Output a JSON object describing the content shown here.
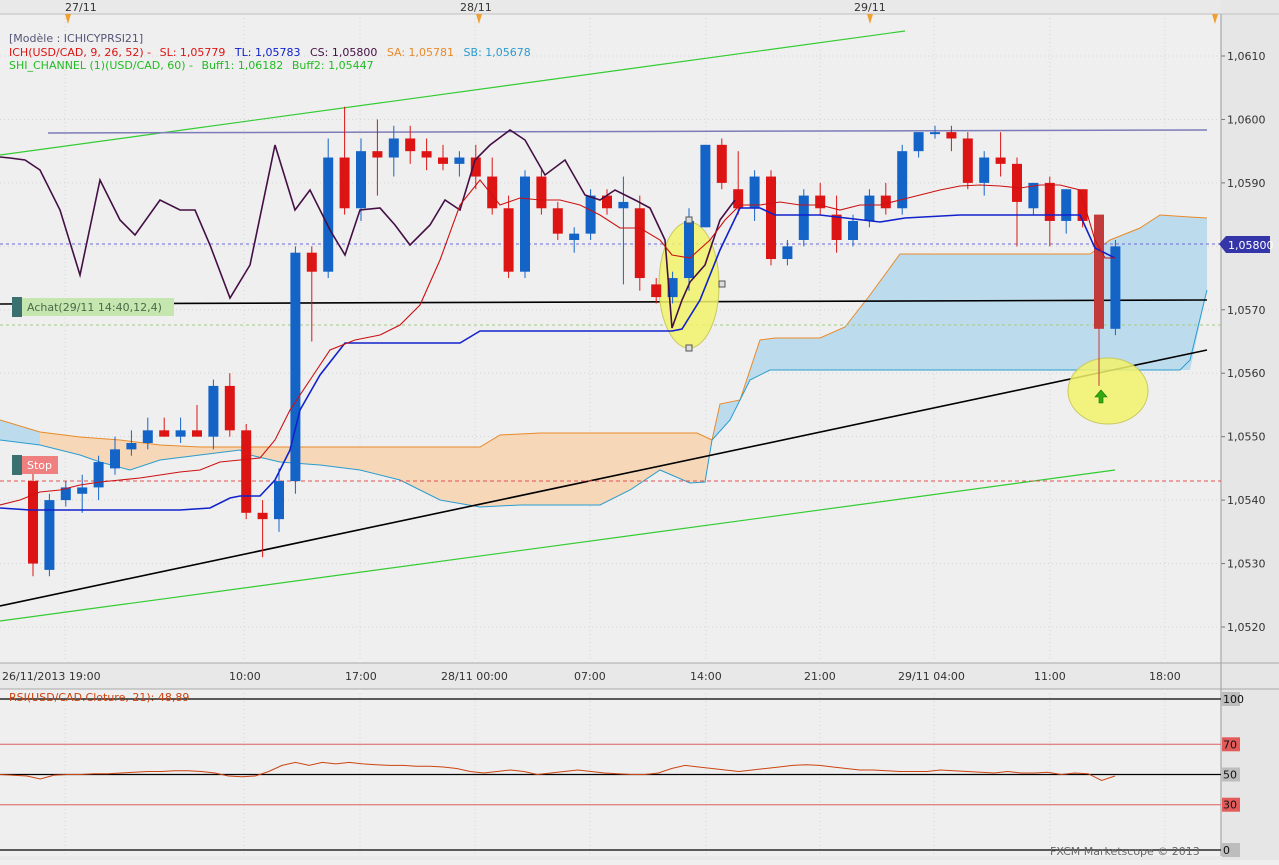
{
  "date_markers": [
    "27/11",
    "28/11",
    "29/11"
  ],
  "main_chart": {
    "template": "[Modèle : ICHICYPRSI21]",
    "ichimoku": {
      "prefix": "ICH(USD/CAD, 9, 26, 52) -",
      "sl": "SL: 1,05779",
      "tl": "TL: 1,05783",
      "cs": "CS: 1,05800",
      "sa": "SA: 1,05781",
      "sb": "SB: 1,05678"
    },
    "shi_channel": {
      "prefix": "SHI_CHANNEL (1)(USD/CAD, 60) -",
      "buff1": "Buff1: 1,06182",
      "buff2": "Buff2: 1,05447"
    },
    "buy_label": "Achat(29/11 14:40,12,4)",
    "stop_label": "Stop",
    "last_price": "1,05800"
  },
  "rsi_panel": {
    "label": "RSI(USD/CAD.Cloture, 21): 48,89",
    "y_ticks": [
      "100",
      "70",
      "50",
      "30",
      "0"
    ]
  },
  "copyright": "FXCM Marketscope © 2013",
  "colors": {
    "bull": "#1464c8",
    "bear": "#dd1414",
    "cloud_bull": "#bcdcee",
    "cloud_bear": "#f6d7b8",
    "tenkan": "#cc1111",
    "kijun": "#1122cc",
    "chikou": "#440f44",
    "channel": "#33cc33",
    "rsi": "#cc4411",
    "highlight": "#f2f26a"
  },
  "chart_data": {
    "type": "candlestick",
    "symbol": "USD/CAD",
    "timeframe": "60 min",
    "x_tick_labels": [
      "26/11/2013 19:00",
      "10:00",
      "17:00",
      "28/11 00:00",
      "07:00",
      "14:00",
      "21:00",
      "29/11 04:00",
      "11:00",
      "18:00"
    ],
    "y_tick_labels": [
      "1,0520",
      "1,0530",
      "1,0540",
      "1,0550",
      "1,0560",
      "1,0570",
      "1,0580",
      "1,0590",
      "1,0600",
      "1,0610"
    ],
    "ylim": [
      1.0515,
      1.0617
    ],
    "candles": [
      {
        "o": 1.0543,
        "h": 1.0545,
        "l": 1.0528,
        "c": 1.053
      },
      {
        "o": 1.0529,
        "h": 1.0541,
        "l": 1.0528,
        "c": 1.054
      },
      {
        "o": 1.054,
        "h": 1.0543,
        "l": 1.0539,
        "c": 1.0542
      },
      {
        "o": 1.0541,
        "h": 1.0544,
        "l": 1.0538,
        "c": 1.0542
      },
      {
        "o": 1.0542,
        "h": 1.0547,
        "l": 1.054,
        "c": 1.0546
      },
      {
        "o": 1.0545,
        "h": 1.055,
        "l": 1.0544,
        "c": 1.0548
      },
      {
        "o": 1.0548,
        "h": 1.0551,
        "l": 1.0547,
        "c": 1.0549
      },
      {
        "o": 1.0549,
        "h": 1.0553,
        "l": 1.0548,
        "c": 1.0551
      },
      {
        "o": 1.0551,
        "h": 1.0553,
        "l": 1.055,
        "c": 1.055
      },
      {
        "o": 1.055,
        "h": 1.0553,
        "l": 1.0549,
        "c": 1.0551
      },
      {
        "o": 1.0551,
        "h": 1.0555,
        "l": 1.055,
        "c": 1.055
      },
      {
        "o": 1.055,
        "h": 1.0559,
        "l": 1.0548,
        "c": 1.0558
      },
      {
        "o": 1.0558,
        "h": 1.056,
        "l": 1.055,
        "c": 1.0551
      },
      {
        "o": 1.0551,
        "h": 1.0552,
        "l": 1.0537,
        "c": 1.0538
      },
      {
        "o": 1.0538,
        "h": 1.054,
        "l": 1.0531,
        "c": 1.0537
      },
      {
        "o": 1.0537,
        "h": 1.0545,
        "l": 1.0535,
        "c": 1.0543
      },
      {
        "o": 1.0543,
        "h": 1.058,
        "l": 1.0541,
        "c": 1.0579
      },
      {
        "o": 1.0579,
        "h": 1.058,
        "l": 1.0565,
        "c": 1.0576
      },
      {
        "o": 1.0576,
        "h": 1.0597,
        "l": 1.0575,
        "c": 1.0594
      },
      {
        "o": 1.0594,
        "h": 1.0602,
        "l": 1.0585,
        "c": 1.0586
      },
      {
        "o": 1.0586,
        "h": 1.0597,
        "l": 1.0584,
        "c": 1.0595
      },
      {
        "o": 1.0595,
        "h": 1.06,
        "l": 1.0588,
        "c": 1.0594
      },
      {
        "o": 1.0594,
        "h": 1.0599,
        "l": 1.0591,
        "c": 1.0597
      },
      {
        "o": 1.0597,
        "h": 1.0599,
        "l": 1.0593,
        "c": 1.0595
      },
      {
        "o": 1.0595,
        "h": 1.0597,
        "l": 1.0592,
        "c": 1.0594
      },
      {
        "o": 1.0594,
        "h": 1.0596,
        "l": 1.0592,
        "c": 1.0593
      },
      {
        "o": 1.0593,
        "h": 1.0595,
        "l": 1.0591,
        "c": 1.0594
      },
      {
        "o": 1.0594,
        "h": 1.0596,
        "l": 1.0589,
        "c": 1.0591
      },
      {
        "o": 1.0591,
        "h": 1.0594,
        "l": 1.0585,
        "c": 1.0586
      },
      {
        "o": 1.0586,
        "h": 1.0588,
        "l": 1.0575,
        "c": 1.0576
      },
      {
        "o": 1.0576,
        "h": 1.0592,
        "l": 1.0575,
        "c": 1.0591
      },
      {
        "o": 1.0591,
        "h": 1.0592,
        "l": 1.0585,
        "c": 1.0586
      },
      {
        "o": 1.0586,
        "h": 1.0587,
        "l": 1.0581,
        "c": 1.0582
      },
      {
        "o": 1.0581,
        "h": 1.0583,
        "l": 1.0579,
        "c": 1.0582
      },
      {
        "o": 1.0582,
        "h": 1.0589,
        "l": 1.0581,
        "c": 1.0588
      },
      {
        "o": 1.0588,
        "h": 1.0589,
        "l": 1.0585,
        "c": 1.0586
      },
      {
        "o": 1.0586,
        "h": 1.0591,
        "l": 1.0574,
        "c": 1.0587
      },
      {
        "o": 1.0586,
        "h": 1.0588,
        "l": 1.0573,
        "c": 1.0575
      },
      {
        "o": 1.0574,
        "h": 1.0575,
        "l": 1.0571,
        "c": 1.0572
      },
      {
        "o": 1.0572,
        "h": 1.0576,
        "l": 1.0571,
        "c": 1.0575
      },
      {
        "o": 1.0575,
        "h": 1.0586,
        "l": 1.0573,
        "c": 1.0584
      },
      {
        "o": 1.0583,
        "h": 1.0596,
        "l": 1.0583,
        "c": 1.0596
      },
      {
        "o": 1.0596,
        "h": 1.0597,
        "l": 1.0589,
        "c": 1.059
      },
      {
        "o": 1.0589,
        "h": 1.0595,
        "l": 1.0585,
        "c": 1.0586
      },
      {
        "o": 1.0586,
        "h": 1.0592,
        "l": 1.0584,
        "c": 1.0591
      },
      {
        "o": 1.0591,
        "h": 1.0592,
        "l": 1.0577,
        "c": 1.0578
      },
      {
        "o": 1.0578,
        "h": 1.0581,
        "l": 1.0577,
        "c": 1.058
      },
      {
        "o": 1.0581,
        "h": 1.0589,
        "l": 1.058,
        "c": 1.0588
      },
      {
        "o": 1.0588,
        "h": 1.059,
        "l": 1.0585,
        "c": 1.0586
      },
      {
        "o": 1.0585,
        "h": 1.0588,
        "l": 1.0579,
        "c": 1.0581
      },
      {
        "o": 1.0581,
        "h": 1.0585,
        "l": 1.058,
        "c": 1.0584
      },
      {
        "o": 1.0584,
        "h": 1.0589,
        "l": 1.0583,
        "c": 1.0588
      },
      {
        "o": 1.0588,
        "h": 1.059,
        "l": 1.0585,
        "c": 1.0586
      },
      {
        "o": 1.0586,
        "h": 1.0596,
        "l": 1.0585,
        "c": 1.0595
      },
      {
        "o": 1.0595,
        "h": 1.0598,
        "l": 1.0594,
        "c": 1.0598
      },
      {
        "o": 1.0598,
        "h": 1.0599,
        "l": 1.0597,
        "c": 1.0598
      },
      {
        "o": 1.0598,
        "h": 1.0599,
        "l": 1.0595,
        "c": 1.0597
      },
      {
        "o": 1.0597,
        "h": 1.0598,
        "l": 1.0589,
        "c": 1.059
      },
      {
        "o": 1.059,
        "h": 1.0595,
        "l": 1.0588,
        "c": 1.0594
      },
      {
        "o": 1.0594,
        "h": 1.0598,
        "l": 1.0591,
        "c": 1.0593
      },
      {
        "o": 1.0593,
        "h": 1.0594,
        "l": 1.058,
        "c": 1.0587
      },
      {
        "o": 1.0586,
        "h": 1.059,
        "l": 1.0585,
        "c": 1.059
      },
      {
        "o": 1.059,
        "h": 1.0591,
        "l": 1.058,
        "c": 1.0584
      },
      {
        "o": 1.0584,
        "h": 1.0589,
        "l": 1.0582,
        "c": 1.0589
      },
      {
        "o": 1.0589,
        "h": 1.0589,
        "l": 1.0583,
        "c": 1.0584
      },
      {
        "o": 1.0585,
        "h": 1.0585,
        "l": 1.0558,
        "c": 1.0567
      },
      {
        "o": 1.0567,
        "h": 1.0581,
        "l": 1.0566,
        "c": 1.058
      }
    ],
    "annotations": [
      "Achat(29/11 14:40,12,4)",
      "Stop",
      "1,05800"
    ],
    "rsi": {
      "period": 21,
      "last": 48.89,
      "ylim": [
        0,
        100
      ],
      "levels": [
        30,
        50,
        70
      ],
      "values": [
        50,
        49.5,
        49,
        47,
        49.5,
        50,
        50,
        50.5,
        50.5,
        51,
        51.5,
        52,
        52,
        52.5,
        52.5,
        52,
        51,
        49,
        48.5,
        49,
        52,
        56,
        58,
        56,
        58,
        57,
        58,
        57,
        56.5,
        56,
        56,
        55.5,
        55.5,
        55,
        54,
        52,
        51,
        52,
        53,
        52,
        50,
        51,
        52,
        53,
        52,
        51,
        50.5,
        50,
        50,
        51,
        54,
        56,
        55,
        54,
        53,
        52,
        53,
        54,
        55,
        56,
        56.5,
        56,
        55,
        54,
        53,
        53,
        52.5,
        52,
        52,
        52,
        53,
        52.5,
        52,
        51.5,
        51,
        52,
        51,
        51,
        51.5,
        50,
        51,
        50.5,
        46,
        49
      ]
    }
  }
}
